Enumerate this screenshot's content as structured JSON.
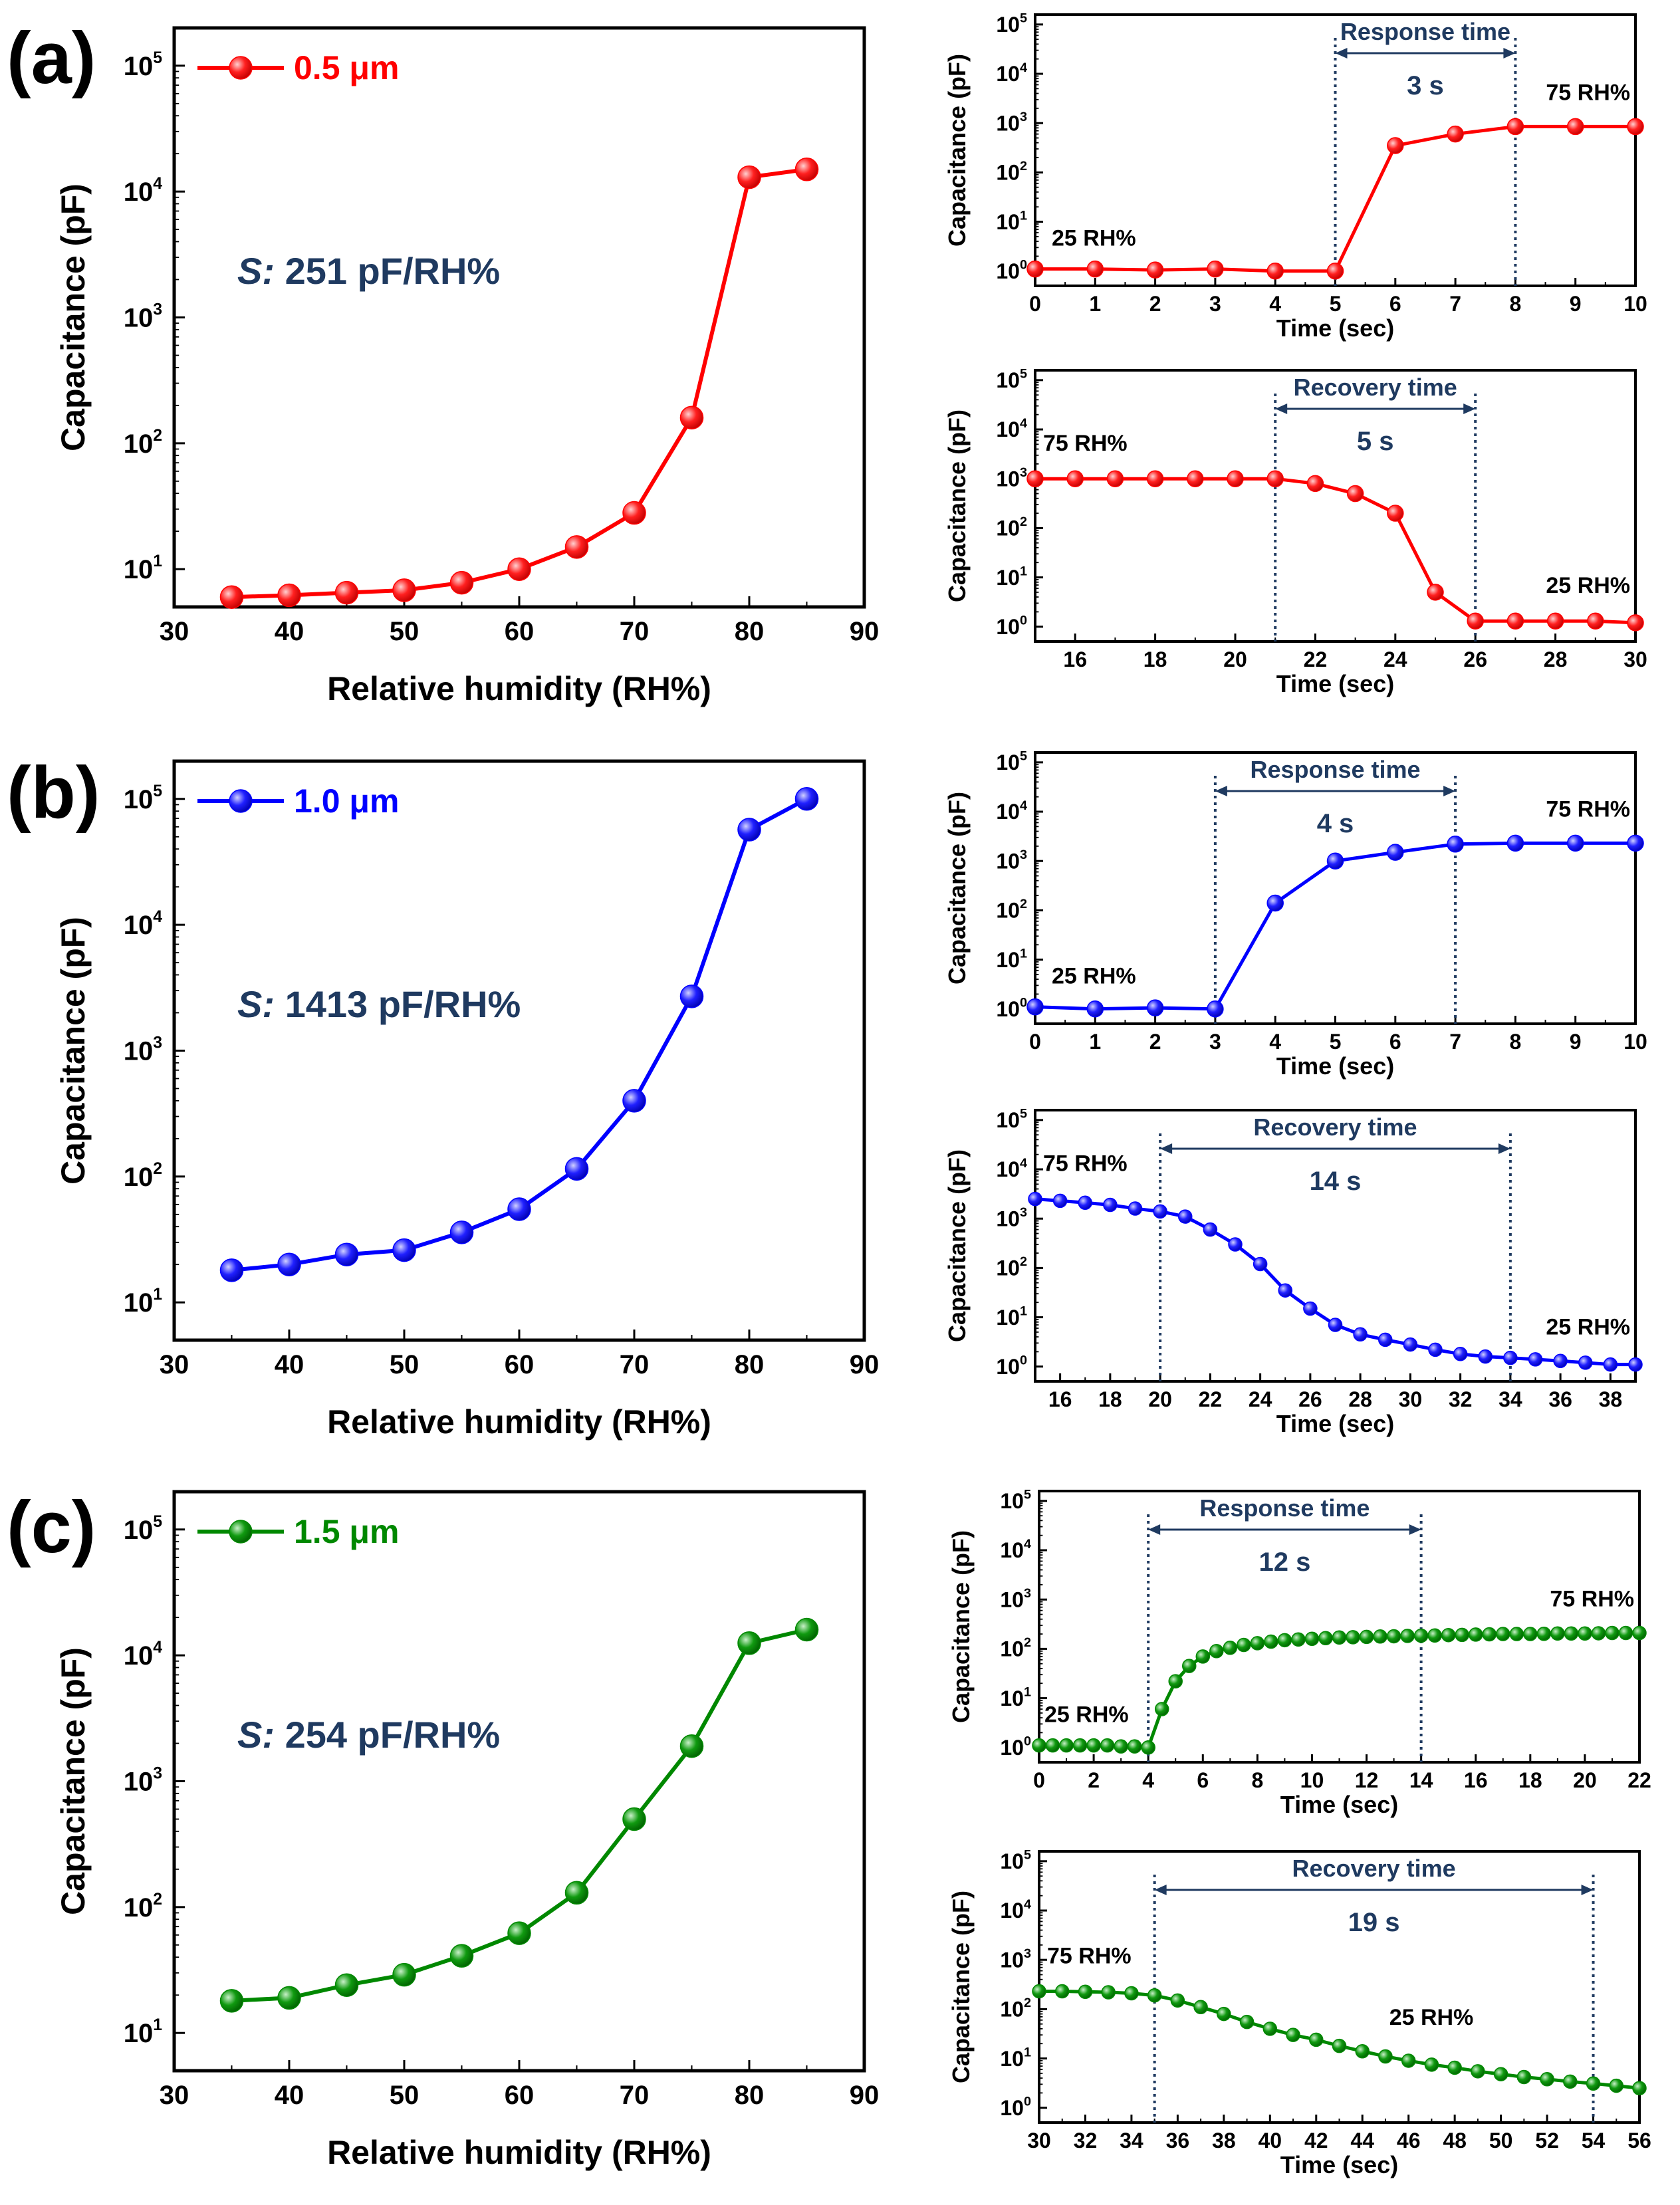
{
  "panels": [
    {
      "label": "(a)",
      "color": "#ff0000",
      "main": {
        "legend": "0.5 μm",
        "sensitivity_prefix": "S:",
        "sensitivity_value": "251 pF/RH%",
        "xlabel": "Relative humidity (RH%)",
        "ylabel": "Capacitance (pF)",
        "xlim": [
          30,
          90
        ],
        "xticks": [
          30,
          40,
          50,
          60,
          70,
          80,
          90
        ],
        "yexp": [
          0.7,
          5.3
        ],
        "x": [
          35,
          40,
          45,
          50,
          55,
          60,
          65,
          70,
          75,
          80,
          85
        ],
        "y": [
          6,
          6.2,
          6.5,
          6.8,
          7.8,
          10,
          15,
          28,
          160,
          13000,
          15000
        ]
      },
      "response": {
        "title": "Response time",
        "duration": "3 s",
        "start_label": "25 RH%",
        "end_label": "75 RH%",
        "xlabel": "Time (sec)",
        "ylabel": "Capacitance (pF)",
        "xlim": [
          0,
          10
        ],
        "xticks": [
          0,
          1,
          2,
          3,
          4,
          5,
          6,
          7,
          8,
          9,
          10
        ],
        "yexp": [
          -0.3,
          5.2
        ],
        "mark_x": [
          5,
          8
        ],
        "x": [
          0,
          1,
          2,
          3,
          4,
          5,
          6,
          7,
          8,
          9,
          10
        ],
        "y": [
          1.1,
          1.1,
          1.05,
          1.1,
          1.0,
          1.0,
          350,
          600,
          850,
          850,
          850
        ]
      },
      "recovery": {
        "title": "Recovery time",
        "duration": "5 s",
        "start_label": "75 RH%",
        "end_label": "25 RH%",
        "xlabel": "Time (sec)",
        "ylabel": "Capacitance (pF)",
        "xlim": [
          15,
          30
        ],
        "xticks": [
          16,
          18,
          20,
          22,
          24,
          26,
          28,
          30
        ],
        "yexp": [
          -0.3,
          5.2
        ],
        "mark_x": [
          21,
          26
        ],
        "x": [
          15,
          16,
          17,
          18,
          19,
          20,
          21,
          22,
          23,
          24,
          25,
          26,
          27,
          28,
          29,
          30
        ],
        "y": [
          1000,
          1000,
          1000,
          1000,
          1000,
          1000,
          1000,
          800,
          500,
          200,
          5,
          1.3,
          1.3,
          1.3,
          1.3,
          1.2
        ]
      }
    },
    {
      "label": "(b)",
      "color": "#0000ff",
      "main": {
        "legend": "1.0 μm",
        "sensitivity_prefix": "S:",
        "sensitivity_value": "1413 pF/RH%",
        "xlabel": "Relative humidity (RH%)",
        "ylabel": "Capacitance (pF)",
        "xlim": [
          30,
          90
        ],
        "xticks": [
          30,
          40,
          50,
          60,
          70,
          80,
          90
        ],
        "yexp": [
          0.7,
          5.3
        ],
        "x": [
          35,
          40,
          45,
          50,
          55,
          60,
          65,
          70,
          75,
          80,
          85
        ],
        "y": [
          18,
          20,
          24,
          26,
          36,
          55,
          115,
          400,
          2700,
          57000,
          100000
        ]
      },
      "response": {
        "title": "Response time",
        "duration": "4 s",
        "start_label": "25 RH%",
        "end_label": "75 RH%",
        "xlabel": "Time (sec)",
        "ylabel": "Capacitance (pF)",
        "xlim": [
          0,
          10
        ],
        "xticks": [
          0,
          1,
          2,
          3,
          4,
          5,
          6,
          7,
          8,
          9,
          10
        ],
        "yexp": [
          -0.3,
          5.2
        ],
        "mark_x": [
          3,
          7
        ],
        "x": [
          0,
          1,
          2,
          3,
          4,
          5,
          6,
          7,
          8,
          9,
          10
        ],
        "y": [
          1.1,
          1.0,
          1.05,
          1.0,
          140,
          1000,
          1500,
          2200,
          2300,
          2300,
          2300
        ]
      },
      "recovery": {
        "title": "Recovery time",
        "duration": "14 s",
        "start_label": "75 RH%",
        "end_label": "25 RH%",
        "xlabel": "Time (sec)",
        "ylabel": "Capacitance (pF)",
        "xlim": [
          15,
          39
        ],
        "xticks": [
          16,
          18,
          20,
          22,
          24,
          26,
          28,
          30,
          32,
          34,
          36,
          38
        ],
        "yexp": [
          -0.3,
          5.2
        ],
        "mark_x": [
          20,
          34
        ],
        "x": [
          15,
          16,
          17,
          18,
          19,
          20,
          21,
          22,
          23,
          24,
          25,
          26,
          27,
          28,
          29,
          30,
          31,
          32,
          33,
          34,
          35,
          36,
          37,
          38,
          39
        ],
        "y": [
          2500,
          2300,
          2100,
          1900,
          1600,
          1400,
          1100,
          600,
          300,
          120,
          35,
          15,
          7,
          4.5,
          3.5,
          2.8,
          2.2,
          1.8,
          1.6,
          1.5,
          1.4,
          1.3,
          1.2,
          1.1,
          1.1
        ]
      }
    },
    {
      "label": "(c)",
      "color": "#008800",
      "main": {
        "legend": "1.5 μm",
        "sensitivity_prefix": "S:",
        "sensitivity_value": "254 pF/RH%",
        "xlabel": "Relative humidity (RH%)",
        "ylabel": "Capacitance (pF)",
        "xlim": [
          30,
          90
        ],
        "xticks": [
          30,
          40,
          50,
          60,
          70,
          80,
          90
        ],
        "yexp": [
          0.7,
          5.3
        ],
        "x": [
          35,
          40,
          45,
          50,
          55,
          60,
          65,
          70,
          75,
          80,
          85
        ],
        "y": [
          18,
          19,
          24,
          29,
          41,
          62,
          130,
          500,
          1900,
          12500,
          16000
        ]
      },
      "response": {
        "title": "Response time",
        "duration": "12 s",
        "start_label": "25 RH%",
        "end_label": "75 RH%",
        "xlabel": "Time (sec)",
        "ylabel": "Capacitance (pF)",
        "xlim": [
          0,
          22
        ],
        "xticks": [
          0,
          2,
          4,
          6,
          8,
          10,
          12,
          14,
          16,
          18,
          20,
          22
        ],
        "yexp": [
          -0.3,
          5.2
        ],
        "mark_x": [
          4,
          14
        ],
        "x": [
          0,
          0.5,
          1,
          1.5,
          2,
          2.5,
          3,
          3.5,
          4,
          4.5,
          5,
          5.5,
          6,
          6.5,
          7,
          7.5,
          8,
          8.5,
          9,
          9.5,
          10,
          10.5,
          11,
          11.5,
          12,
          12.5,
          13,
          13.5,
          14,
          14.5,
          15,
          15.5,
          16,
          16.5,
          17,
          17.5,
          18,
          18.5,
          19,
          19.5,
          20,
          20.5,
          21,
          21.5,
          22
        ],
        "y": [
          1.1,
          1.1,
          1.1,
          1.1,
          1.1,
          1.1,
          1.05,
          1.05,
          1.0,
          6,
          22,
          45,
          70,
          90,
          105,
          120,
          130,
          140,
          150,
          155,
          160,
          165,
          170,
          172,
          175,
          178,
          180,
          183,
          185,
          187,
          190,
          192,
          195,
          197,
          200,
          200,
          200,
          202,
          205,
          205,
          205,
          207,
          210,
          210,
          210
        ]
      },
      "recovery": {
        "title": "Recovery time",
        "duration": "19 s",
        "start_label": "75 RH%",
        "end_label": "25 RH%",
        "xlabel": "Time (sec)",
        "ylabel": "Capacitance (pF)",
        "xlim": [
          30,
          56
        ],
        "xticks": [
          30,
          32,
          34,
          36,
          38,
          40,
          42,
          44,
          46,
          48,
          50,
          52,
          54,
          56
        ],
        "yexp": [
          -0.3,
          5.2
        ],
        "mark_x": [
          35,
          54
        ],
        "x": [
          30,
          31,
          32,
          33,
          34,
          35,
          36,
          37,
          38,
          39,
          40,
          41,
          42,
          43,
          44,
          45,
          46,
          47,
          48,
          49,
          50,
          51,
          52,
          53,
          54,
          55,
          56
        ],
        "y": [
          230,
          230,
          225,
          220,
          210,
          190,
          150,
          110,
          80,
          55,
          40,
          30,
          24,
          18,
          14,
          11,
          9,
          7.5,
          6.5,
          5.5,
          4.8,
          4.2,
          3.8,
          3.4,
          3.1,
          2.8,
          2.5
        ]
      }
    }
  ]
}
